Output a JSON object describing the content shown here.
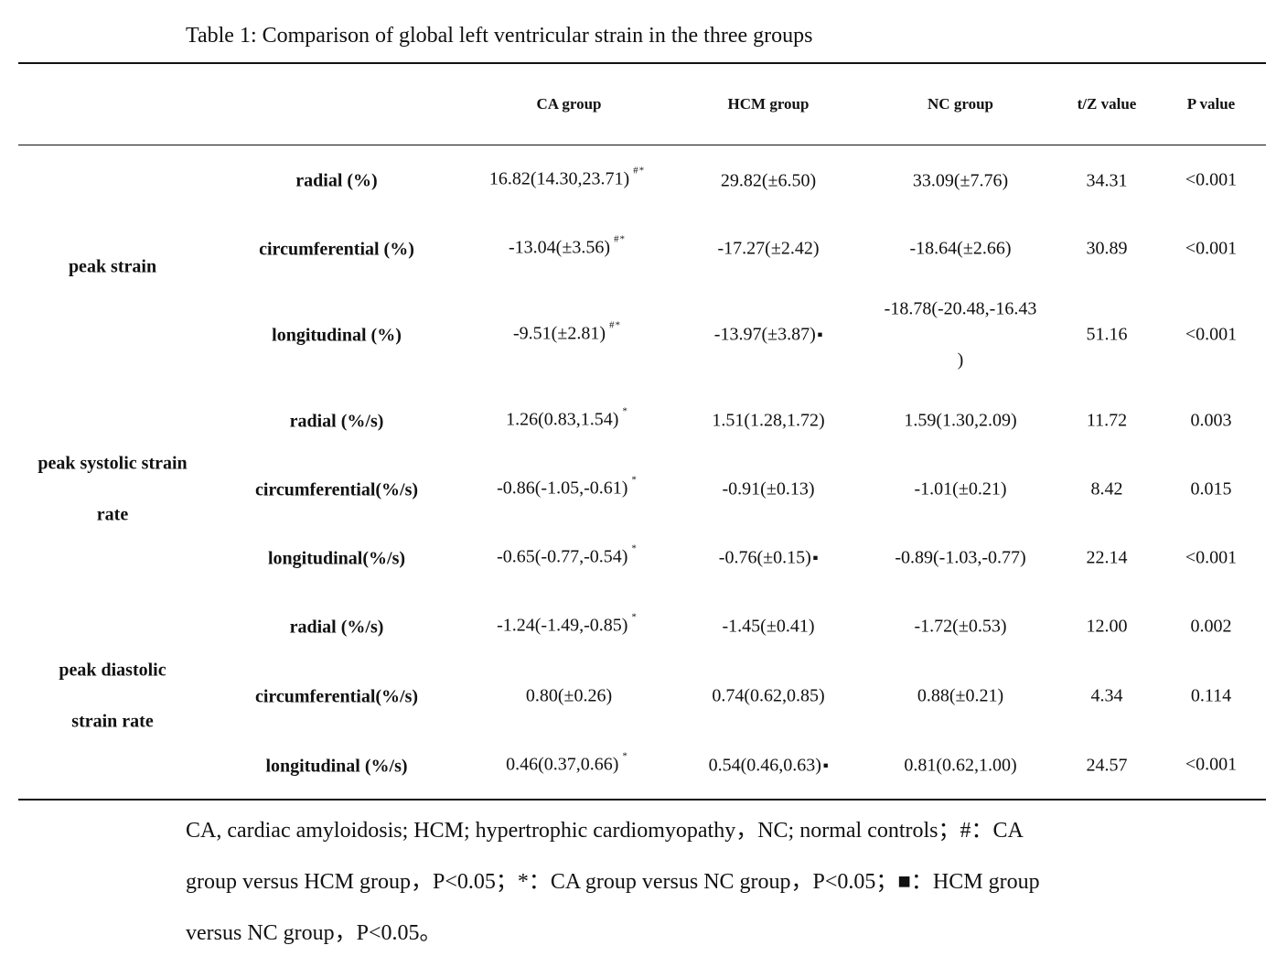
{
  "title": "Table 1: Comparison of global left ventricular strain in the three groups",
  "headers": [
    "CA group",
    "HCM group",
    "NC group",
    "t/Z value",
    "P value"
  ],
  "groups": [
    {
      "label_line1": "peak strain",
      "label_line2": ""
    },
    {
      "label_line1": "peak systolic strain",
      "label_line2": "rate"
    },
    {
      "label_line1": "peak diastolic",
      "label_line2": "strain rate"
    }
  ],
  "rows": [
    {
      "metric": "radial (%)",
      "ca": "16.82(14.30,23.71)",
      "ca_mark": "#*",
      "hcm": "29.82(±6.50)",
      "hcm_mark": "",
      "nc": "33.09(±7.76)",
      "nc_line2": "",
      "tz": "34.31",
      "p": "<0.001"
    },
    {
      "metric": "circumferential (%)",
      "ca": "-13.04(±3.56)",
      "ca_mark": "#*",
      "hcm": "-17.27(±2.42)",
      "hcm_mark": "",
      "nc": "-18.64(±2.66)",
      "nc_line2": "",
      "tz": "30.89",
      "p": "<0.001"
    },
    {
      "metric": "longitudinal (%)",
      "ca": "-9.51(±2.81)",
      "ca_mark": "#*",
      "hcm": "-13.97(±3.87)",
      "hcm_mark": "■",
      "nc": "-18.78(-20.48,-16.43",
      "nc_line2": ")",
      "tz": "51.16",
      "p": "<0.001"
    },
    {
      "metric": "radial (%/s)",
      "ca": "1.26(0.83,1.54)",
      "ca_mark": "*",
      "hcm": "1.51(1.28,1.72)",
      "hcm_mark": "",
      "nc": "1.59(1.30,2.09)",
      "nc_line2": "",
      "tz": "11.72",
      "p": "0.003"
    },
    {
      "metric": "circumferential(%/s)",
      "ca": "-0.86(-1.05,-0.61)",
      "ca_mark": "*",
      "hcm": "-0.91(±0.13)",
      "hcm_mark": "",
      "nc": "-1.01(±0.21)",
      "nc_line2": "",
      "tz": "8.42",
      "p": "0.015"
    },
    {
      "metric": "longitudinal(%/s)",
      "ca": "-0.65(-0.77,-0.54)",
      "ca_mark": "*",
      "hcm": "-0.76(±0.15)",
      "hcm_mark": "■",
      "nc": "-0.89(-1.03,-0.77)",
      "nc_line2": "",
      "tz": "22.14",
      "p": "<0.001"
    },
    {
      "metric": "radial (%/s)",
      "ca": "-1.24(-1.49,-0.85)",
      "ca_mark": "*",
      "hcm": "-1.45(±0.41)",
      "hcm_mark": "",
      "nc": "-1.72(±0.53)",
      "nc_line2": "",
      "tz": "12.00",
      "p": "0.002"
    },
    {
      "metric": "circumferential(%/s)",
      "ca": "0.80(±0.26)",
      "ca_mark": "",
      "hcm": "0.74(0.62,0.85)",
      "hcm_mark": "",
      "nc": "0.88(±0.21)",
      "nc_line2": "",
      "tz": "4.34",
      "p": "0.114"
    },
    {
      "metric": "longitudinal (%/s)",
      "ca": "0.46(0.37,0.66)",
      "ca_mark": "*",
      "hcm": "0.54(0.46,0.63)",
      "hcm_mark": "■",
      "nc": "0.81(0.62,1.00)",
      "nc_line2": "",
      "tz": "24.57",
      "p": "<0.001"
    }
  ],
  "footnote": {
    "line1": "CA, cardiac amyloidosis; HCM; hypertrophic cardiomyopathy，NC; normal controls；#：CA",
    "line2": "group versus HCM group，P<0.05；*：CA group versus NC group，P<0.05；■：HCM group",
    "line3": "versus NC group，P<0.05。"
  }
}
